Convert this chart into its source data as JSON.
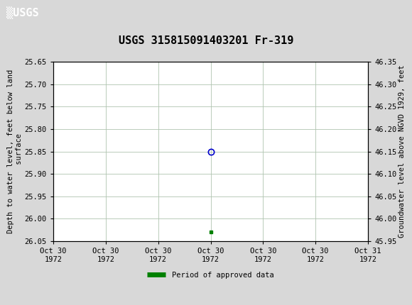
{
  "title": "USGS 315815091403201 Fr-319",
  "ylabel_left": "Depth to water level, feet below land\n surface",
  "ylabel_right": "Groundwater level above NGVD 1929, feet",
  "ylim_left": [
    26.05,
    25.65
  ],
  "ylim_right": [
    45.95,
    46.35
  ],
  "yticks_left": [
    25.65,
    25.7,
    25.75,
    25.8,
    25.85,
    25.9,
    25.95,
    26.0,
    26.05
  ],
  "yticks_right": [
    45.95,
    46.0,
    46.05,
    46.1,
    46.15,
    46.2,
    46.25,
    46.3,
    46.35
  ],
  "xlim": [
    0,
    6
  ],
  "xtick_labels": [
    "Oct 30\n1972",
    "Oct 30\n1972",
    "Oct 30\n1972",
    "Oct 30\n1972",
    "Oct 30\n1972",
    "Oct 30\n1972",
    "Oct 31\n1972"
  ],
  "xtick_positions": [
    0,
    1,
    2,
    3,
    4,
    5,
    6
  ],
  "data_point_x": 3,
  "data_point_y": 25.85,
  "green_square_x": 3,
  "green_square_y": 26.03,
  "bg_color": "#d8d8d8",
  "plot_bg_color": "#ffffff",
  "header_bg_color": "#006644",
  "header_text_color": "#ffffff",
  "grid_color": "#b0c4b0",
  "circle_color": "#0000cc",
  "green_color": "#008000",
  "font_family": "monospace",
  "title_fontsize": 11,
  "tick_fontsize": 7.5,
  "label_fontsize": 7.5,
  "legend_label": "Period of approved data"
}
